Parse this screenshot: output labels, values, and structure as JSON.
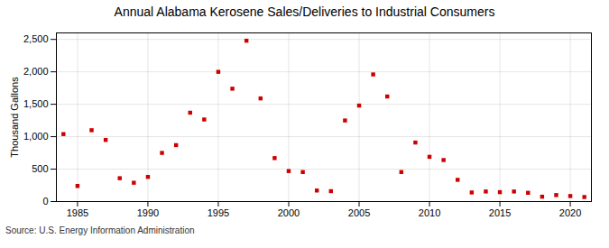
{
  "chart_data": {
    "type": "scatter",
    "title": "Annual Alabama Kerosene Sales/Deliveries to Industrial Consumers",
    "ylabel": "Thousand Gallons",
    "source": "Source: U.S. Energy Information Administration",
    "x": [
      1984,
      1985,
      1986,
      1987,
      1988,
      1989,
      1990,
      1991,
      1992,
      1993,
      1994,
      1995,
      1996,
      1997,
      1998,
      1999,
      2000,
      2001,
      2002,
      2003,
      2004,
      2005,
      2006,
      2007,
      2008,
      2009,
      2010,
      2011,
      2012,
      2013,
      2014,
      2015,
      2016,
      2017,
      2018,
      2019,
      2020,
      2021
    ],
    "values": [
      1040,
      240,
      1100,
      950,
      360,
      290,
      380,
      750,
      870,
      1370,
      1265,
      2000,
      1740,
      2480,
      1590,
      670,
      470,
      455,
      170,
      160,
      1250,
      1480,
      1960,
      1620,
      455,
      910,
      690,
      640,
      335,
      140,
      155,
      145,
      155,
      135,
      75,
      100,
      85,
      70
    ],
    "color": "#cc0000",
    "marker": "square",
    "xlim": [
      1983.5,
      2021.5
    ],
    "xticks": [
      1985,
      1990,
      1995,
      2000,
      2005,
      2010,
      2015,
      2020
    ],
    "ylim": [
      0,
      2600
    ],
    "yticks": [
      0,
      500,
      {
        "value": 1000,
        "label": "1,000"
      },
      {
        "value": 1500,
        "label": "1,500"
      },
      {
        "value": 2000,
        "label": "2,000"
      },
      {
        "value": 2500,
        "label": "2,500"
      }
    ],
    "grid": true
  }
}
